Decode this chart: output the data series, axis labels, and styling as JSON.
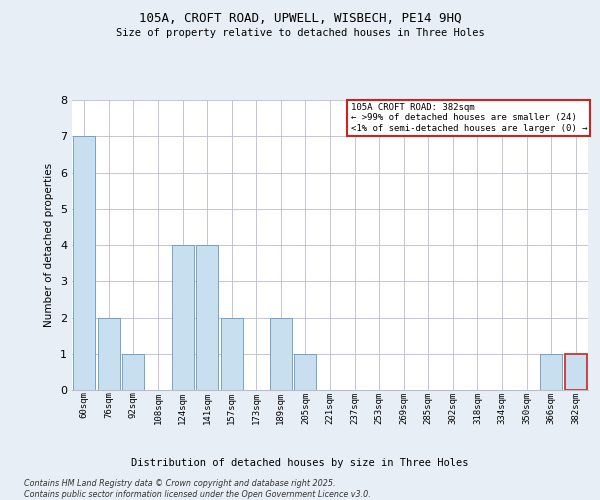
{
  "title_line1": "105A, CROFT ROAD, UPWELL, WISBECH, PE14 9HQ",
  "title_line2": "Size of property relative to detached houses in Three Holes",
  "xlabel": "Distribution of detached houses by size in Three Holes",
  "ylabel": "Number of detached properties",
  "categories": [
    "60sqm",
    "76sqm",
    "92sqm",
    "108sqm",
    "124sqm",
    "141sqm",
    "157sqm",
    "173sqm",
    "189sqm",
    "205sqm",
    "221sqm",
    "237sqm",
    "253sqm",
    "269sqm",
    "285sqm",
    "302sqm",
    "318sqm",
    "334sqm",
    "350sqm",
    "366sqm",
    "382sqm"
  ],
  "values": [
    7,
    2,
    1,
    0,
    4,
    4,
    2,
    0,
    2,
    1,
    0,
    0,
    0,
    0,
    0,
    0,
    0,
    0,
    0,
    1,
    1
  ],
  "bar_color": "#c8dff0",
  "bar_edge_color": "#6699bb",
  "highlight_index": 20,
  "highlight_bar_edge_color": "#cc2222",
  "ylim": [
    0,
    8
  ],
  "yticks": [
    0,
    1,
    2,
    3,
    4,
    5,
    6,
    7,
    8
  ],
  "annotation_box_text": "105A CROFT ROAD: 382sqm\n← >99% of detached houses are smaller (24)\n<1% of semi-detached houses are larger (0) →",
  "footer_line1": "Contains HM Land Registry data © Crown copyright and database right 2025.",
  "footer_line2": "Contains public sector information licensed under the Open Government Licence v3.0.",
  "background_color": "#e8eef5",
  "plot_bg_color": "#ffffff",
  "grid_color": "#bbbbcc"
}
